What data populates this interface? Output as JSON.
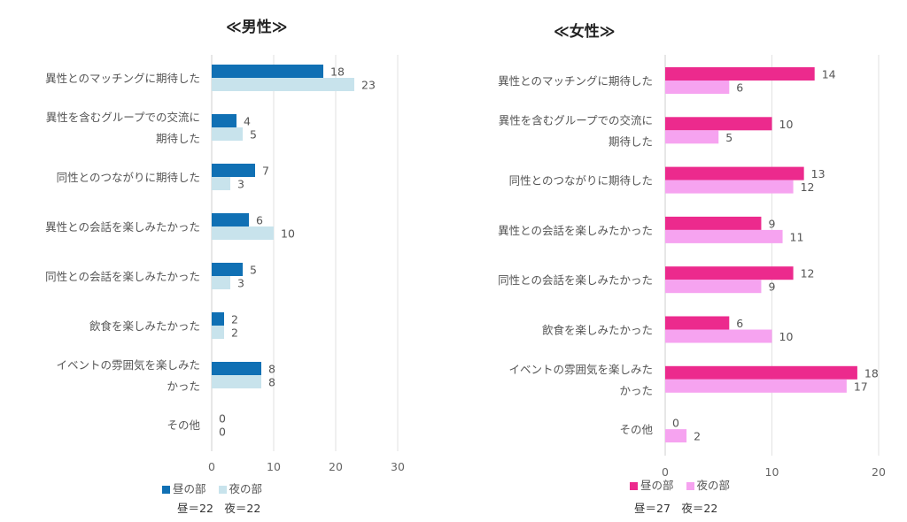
{
  "chart_data": [
    {
      "type": "bar",
      "orientation": "horizontal",
      "title": "≪男性≫",
      "categories": [
        "異性とのマッチングに期待した",
        "異性を含むグループでの交流に期待した",
        "同性とのつながりに期待した",
        "異性との会話を楽しみたかった",
        "同性との会話を楽しみたかった",
        "飲食を楽しみたかった",
        "イベントの雰囲気を楽しみたかった",
        "その他"
      ],
      "category_lines": [
        [
          "異性とのマッチングに期待した"
        ],
        [
          "異性を含むグループでの交流に",
          "期待した"
        ],
        [
          "同性とのつながりに期待した"
        ],
        [
          "異性との会話を楽しみたかった"
        ],
        [
          "同性との会話を楽しみたかった"
        ],
        [
          "飲食を楽しみたかった"
        ],
        [
          "イベントの雰囲気を楽しみた",
          "かった"
        ],
        [
          "その他"
        ]
      ],
      "series": [
        {
          "name": "昼の部",
          "values": [
            18,
            4,
            7,
            6,
            5,
            2,
            8,
            0
          ],
          "color": "#1070B4"
        },
        {
          "name": "夜の部",
          "values": [
            23,
            5,
            3,
            10,
            3,
            2,
            8,
            0
          ],
          "color": "#C8E3EC"
        }
      ],
      "xlim": [
        0,
        30
      ],
      "xticks": [
        "0",
        "10",
        "20",
        "30"
      ],
      "grid": true,
      "legend": "bottom",
      "note": "昼＝22　夜＝22"
    },
    {
      "type": "bar",
      "orientation": "horizontal",
      "title": "≪女性≫",
      "categories": [
        "異性とのマッチングに期待した",
        "異性を含むグループでの交流に期待した",
        "同性とのつながりに期待した",
        "異性との会話を楽しみたかった",
        "同性との会話を楽しみたかった",
        "飲食を楽しみたかった",
        "イベントの雰囲気を楽しみたかった",
        "その他"
      ],
      "category_lines": [
        [
          "異性とのマッチングに期待した"
        ],
        [
          "異性を含むグループでの交流に",
          "期待した"
        ],
        [
          "同性とのつながりに期待した"
        ],
        [
          "異性との会話を楽しみたかった"
        ],
        [
          "同性との会話を楽しみたかった"
        ],
        [
          "飲食を楽しみたかった"
        ],
        [
          "イベントの雰囲気を楽しみた",
          "かった"
        ],
        [
          "その他"
        ]
      ],
      "series": [
        {
          "name": "昼の部",
          "values": [
            14,
            10,
            13,
            9,
            12,
            6,
            18,
            0
          ],
          "color": "#EC2A8D"
        },
        {
          "name": "夜の部",
          "values": [
            6,
            5,
            12,
            11,
            9,
            10,
            17,
            2
          ],
          "color": "#F6A3F0"
        }
      ],
      "xlim": [
        0,
        20
      ],
      "xticks": [
        "0",
        "10",
        "20"
      ],
      "grid": true,
      "legend": "bottom",
      "note": "昼＝27　夜＝22"
    }
  ]
}
